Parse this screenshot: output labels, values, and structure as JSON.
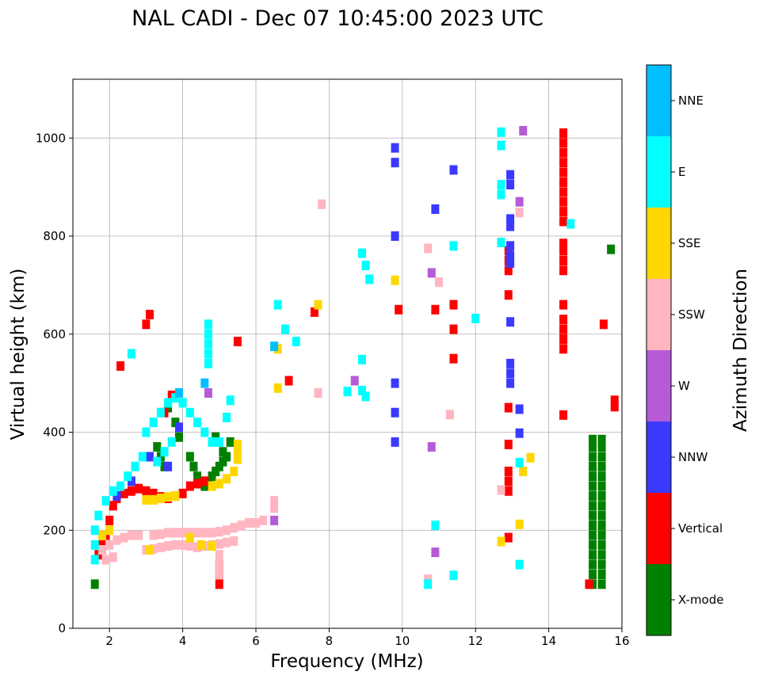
{
  "chart_data": {
    "type": "scatter",
    "title": "NAL CADI - Dec 07 10:45:00 2023 UTC",
    "xlabel": "Frequency (MHz)",
    "ylabel": "Virtual height (km)",
    "xlim": [
      1,
      16
    ],
    "ylim": [
      0,
      1120
    ],
    "xticks": [
      2,
      4,
      6,
      8,
      10,
      12,
      14,
      16
    ],
    "yticks": [
      0,
      200,
      400,
      600,
      800,
      1000
    ],
    "grid": true,
    "colorbar": {
      "label": "Azimuth Direction",
      "categories": [
        {
          "name": "X-mode",
          "color": "#008000"
        },
        {
          "name": "Vertical",
          "color": "#ff0000"
        },
        {
          "name": "NNW",
          "color": "#3a3aff"
        },
        {
          "name": "W",
          "color": "#b55bd6"
        },
        {
          "name": "SSW",
          "color": "#ffb6c1"
        },
        {
          "name": "SSE",
          "color": "#ffd700"
        },
        {
          "name": "E",
          "color": "#00ffff"
        },
        {
          "name": "NNE",
          "color": "#00bfff"
        }
      ]
    },
    "series": [
      {
        "name": "X-mode",
        "color": "#008000",
        "points": [
          [
            15.2,
            90
          ],
          [
            15.2,
            110
          ],
          [
            15.2,
            130
          ],
          [
            15.2,
            150
          ],
          [
            15.2,
            170
          ],
          [
            15.2,
            190
          ],
          [
            15.2,
            210
          ],
          [
            15.2,
            230
          ],
          [
            15.2,
            250
          ],
          [
            15.2,
            270
          ],
          [
            15.2,
            290
          ],
          [
            15.2,
            310
          ],
          [
            15.2,
            330
          ],
          [
            15.2,
            350
          ],
          [
            15.2,
            370
          ],
          [
            15.2,
            385
          ],
          [
            15.45,
            90
          ],
          [
            15.45,
            110
          ],
          [
            15.45,
            130
          ],
          [
            15.45,
            150
          ],
          [
            15.45,
            170
          ],
          [
            15.45,
            190
          ],
          [
            15.45,
            210
          ],
          [
            15.45,
            230
          ],
          [
            15.45,
            250
          ],
          [
            15.45,
            270
          ],
          [
            15.45,
            290
          ],
          [
            15.45,
            310
          ],
          [
            15.45,
            330
          ],
          [
            15.45,
            350
          ],
          [
            15.45,
            370
          ],
          [
            15.45,
            385
          ],
          [
            15.7,
            773
          ],
          [
            4.6,
            290
          ],
          [
            4.7,
            300
          ],
          [
            4.8,
            310
          ],
          [
            4.9,
            320
          ],
          [
            5.0,
            330
          ],
          [
            5.1,
            340
          ],
          [
            5.2,
            350
          ],
          [
            4.5,
            295
          ],
          [
            4.4,
            310
          ],
          [
            4.3,
            330
          ],
          [
            4.2,
            350
          ],
          [
            3.9,
            390
          ],
          [
            3.8,
            420
          ],
          [
            3.6,
            450
          ],
          [
            3.5,
            330
          ],
          [
            3.4,
            350
          ],
          [
            3.3,
            370
          ],
          [
            1.6,
            90
          ],
          [
            5.1,
            360
          ],
          [
            5.3,
            380
          ],
          [
            4.9,
            390
          ]
        ]
      },
      {
        "name": "Vertical",
        "color": "#ff0000",
        "points": [
          [
            14.4,
            570
          ],
          [
            14.4,
            590
          ],
          [
            14.4,
            610
          ],
          [
            14.4,
            630
          ],
          [
            14.4,
            660
          ],
          [
            14.4,
            730
          ],
          [
            14.4,
            750
          ],
          [
            14.4,
            770
          ],
          [
            14.4,
            785
          ],
          [
            14.4,
            830
          ],
          [
            14.4,
            850
          ],
          [
            14.4,
            870
          ],
          [
            14.4,
            890
          ],
          [
            14.4,
            910
          ],
          [
            14.4,
            930
          ],
          [
            14.4,
            950
          ],
          [
            14.4,
            970
          ],
          [
            14.4,
            990
          ],
          [
            14.4,
            1010
          ],
          [
            14.4,
            435
          ],
          [
            12.9,
            280
          ],
          [
            12.9,
            300
          ],
          [
            12.9,
            320
          ],
          [
            12.9,
            375
          ],
          [
            12.9,
            450
          ],
          [
            12.9,
            680
          ],
          [
            12.9,
            730
          ],
          [
            12.9,
            750
          ],
          [
            12.9,
            770
          ],
          [
            12.9,
            185
          ],
          [
            15.5,
            620
          ],
          [
            15.8,
            465
          ],
          [
            15.8,
            452
          ],
          [
            15.1,
            90
          ],
          [
            1.7,
            150
          ],
          [
            1.8,
            170
          ],
          [
            1.9,
            190
          ],
          [
            2.0,
            220
          ],
          [
            2.1,
            250
          ],
          [
            2.2,
            265
          ],
          [
            2.4,
            275
          ],
          [
            2.6,
            280
          ],
          [
            2.8,
            285
          ],
          [
            3.0,
            280
          ],
          [
            3.2,
            275
          ],
          [
            3.4,
            268
          ],
          [
            3.6,
            265
          ],
          [
            3.8,
            270
          ],
          [
            4.0,
            275
          ],
          [
            4.2,
            290
          ],
          [
            4.4,
            295
          ],
          [
            4.6,
            300
          ],
          [
            2.3,
            535
          ],
          [
            3.0,
            620
          ],
          [
            3.1,
            640
          ],
          [
            9.9,
            650
          ],
          [
            10.9,
            650
          ],
          [
            11.4,
            660
          ],
          [
            11.4,
            610
          ],
          [
            11.4,
            550
          ],
          [
            7.6,
            645
          ],
          [
            5.5,
            585
          ],
          [
            6.9,
            505
          ],
          [
            3.7,
            475
          ],
          [
            3.5,
            440
          ],
          [
            5.0,
            90
          ],
          [
            5.0,
            110
          ],
          [
            5.0,
            130
          ]
        ]
      },
      {
        "name": "NNW",
        "color": "#3a3aff",
        "points": [
          [
            12.95,
            500
          ],
          [
            12.95,
            520
          ],
          [
            12.95,
            540
          ],
          [
            12.95,
            625
          ],
          [
            12.95,
            820
          ],
          [
            12.95,
            835
          ],
          [
            12.95,
            905
          ],
          [
            12.95,
            925
          ],
          [
            12.95,
            745
          ],
          [
            12.95,
            760
          ],
          [
            12.95,
            780
          ],
          [
            9.8,
            980
          ],
          [
            9.8,
            950
          ],
          [
            9.8,
            800
          ],
          [
            9.8,
            500
          ],
          [
            9.8,
            440
          ],
          [
            9.8,
            380
          ],
          [
            10.9,
            855
          ],
          [
            11.4,
            935
          ],
          [
            3.9,
            410
          ],
          [
            3.6,
            330
          ],
          [
            3.1,
            350
          ],
          [
            2.6,
            300
          ],
          [
            2.2,
            270
          ],
          [
            13.2,
            398
          ],
          [
            13.2,
            447
          ]
        ]
      },
      {
        "name": "W",
        "color": "#b55bd6",
        "points": [
          [
            8.7,
            505
          ],
          [
            4.7,
            480
          ],
          [
            6.5,
            220
          ],
          [
            13.2,
            870
          ],
          [
            13.3,
            1015
          ],
          [
            10.9,
            155
          ],
          [
            10.8,
            370
          ],
          [
            10.8,
            725
          ]
        ]
      },
      {
        "name": "SSW",
        "color": "#ffb6c1",
        "points": [
          [
            3.2,
            190
          ],
          [
            3.4,
            192
          ],
          [
            3.6,
            195
          ],
          [
            3.8,
            195
          ],
          [
            4.0,
            195
          ],
          [
            4.2,
            195
          ],
          [
            4.4,
            195
          ],
          [
            4.6,
            195
          ],
          [
            4.8,
            195
          ],
          [
            5.0,
            197
          ],
          [
            5.2,
            200
          ],
          [
            5.4,
            205
          ],
          [
            5.6,
            210
          ],
          [
            5.8,
            215
          ],
          [
            6.0,
            215
          ],
          [
            6.2,
            220
          ],
          [
            3.0,
            160
          ],
          [
            3.2,
            162
          ],
          [
            3.4,
            165
          ],
          [
            3.6,
            168
          ],
          [
            3.8,
            170
          ],
          [
            4.0,
            170
          ],
          [
            4.2,
            168
          ],
          [
            4.4,
            165
          ],
          [
            4.6,
            168
          ],
          [
            4.8,
            170
          ],
          [
            5.0,
            172
          ],
          [
            5.2,
            175
          ],
          [
            5.4,
            178
          ],
          [
            1.8,
            160
          ],
          [
            2.0,
            170
          ],
          [
            2.2,
            180
          ],
          [
            2.4,
            185
          ],
          [
            2.6,
            190
          ],
          [
            2.8,
            190
          ],
          [
            1.9,
            140
          ],
          [
            2.1,
            145
          ],
          [
            6.5,
            245
          ],
          [
            6.5,
            260
          ],
          [
            12.7,
            282
          ],
          [
            7.8,
            865
          ],
          [
            10.7,
            775
          ],
          [
            11.0,
            706
          ],
          [
            11.3,
            436
          ],
          [
            10.7,
            100
          ],
          [
            13.2,
            848
          ],
          [
            5.0,
            110
          ],
          [
            5.0,
            130
          ],
          [
            5.0,
            150
          ],
          [
            7.7,
            480
          ]
        ]
      },
      {
        "name": "SSE",
        "color": "#ffd700",
        "points": [
          [
            3.0,
            262
          ],
          [
            3.2,
            262
          ],
          [
            3.4,
            265
          ],
          [
            3.6,
            268
          ],
          [
            3.8,
            270
          ],
          [
            4.8,
            290
          ],
          [
            5.0,
            295
          ],
          [
            5.2,
            305
          ],
          [
            5.4,
            320
          ],
          [
            5.5,
            345
          ],
          [
            5.5,
            360
          ],
          [
            5.5,
            375
          ],
          [
            4.2,
            185
          ],
          [
            4.5,
            170
          ],
          [
            4.8,
            168
          ],
          [
            3.1,
            160
          ],
          [
            2.0,
            200
          ],
          [
            1.8,
            190
          ],
          [
            12.7,
            177
          ],
          [
            13.2,
            212
          ],
          [
            13.3,
            320
          ],
          [
            13.5,
            348
          ],
          [
            9.8,
            710
          ],
          [
            6.6,
            490
          ],
          [
            7.7,
            660
          ],
          [
            6.6,
            570
          ]
        ]
      },
      {
        "name": "E",
        "color": "#00ffff",
        "points": [
          [
            4.7,
            540
          ],
          [
            4.7,
            560
          ],
          [
            4.7,
            580
          ],
          [
            4.7,
            600
          ],
          [
            4.7,
            620
          ],
          [
            3.0,
            400
          ],
          [
            3.2,
            420
          ],
          [
            3.4,
            440
          ],
          [
            3.6,
            460
          ],
          [
            3.8,
            470
          ],
          [
            4.0,
            460
          ],
          [
            4.2,
            440
          ],
          [
            4.4,
            420
          ],
          [
            4.6,
            400
          ],
          [
            4.8,
            380
          ],
          [
            5.0,
            380
          ],
          [
            3.3,
            340
          ],
          [
            3.5,
            360
          ],
          [
            3.7,
            380
          ],
          [
            2.9,
            350
          ],
          [
            2.7,
            330
          ],
          [
            2.5,
            310
          ],
          [
            2.3,
            290
          ],
          [
            2.1,
            280
          ],
          [
            1.9,
            260
          ],
          [
            1.7,
            230
          ],
          [
            1.6,
            200
          ],
          [
            1.6,
            170
          ],
          [
            1.6,
            140
          ],
          [
            12.7,
            1012
          ],
          [
            12.7,
            985
          ],
          [
            12.7,
            905
          ],
          [
            12.7,
            885
          ],
          [
            12.7,
            787
          ],
          [
            12.0,
            632
          ],
          [
            13.2,
            338
          ],
          [
            13.2,
            130
          ],
          [
            14.6,
            825
          ],
          [
            6.6,
            660
          ],
          [
            6.8,
            610
          ],
          [
            7.1,
            585
          ],
          [
            8.5,
            483
          ],
          [
            8.9,
            485
          ],
          [
            9.0,
            473
          ],
          [
            8.9,
            548
          ],
          [
            8.9,
            765
          ],
          [
            9.0,
            740
          ],
          [
            9.1,
            712
          ],
          [
            10.9,
            210
          ],
          [
            10.7,
            90
          ],
          [
            11.4,
            108
          ],
          [
            11.4,
            780
          ],
          [
            2.6,
            560
          ],
          [
            5.3,
            465
          ],
          [
            5.2,
            430
          ]
        ]
      },
      {
        "name": "NNE",
        "color": "#00bfff",
        "points": [
          [
            4.6,
            500
          ],
          [
            3.9,
            480
          ],
          [
            6.5,
            575
          ]
        ]
      }
    ]
  }
}
